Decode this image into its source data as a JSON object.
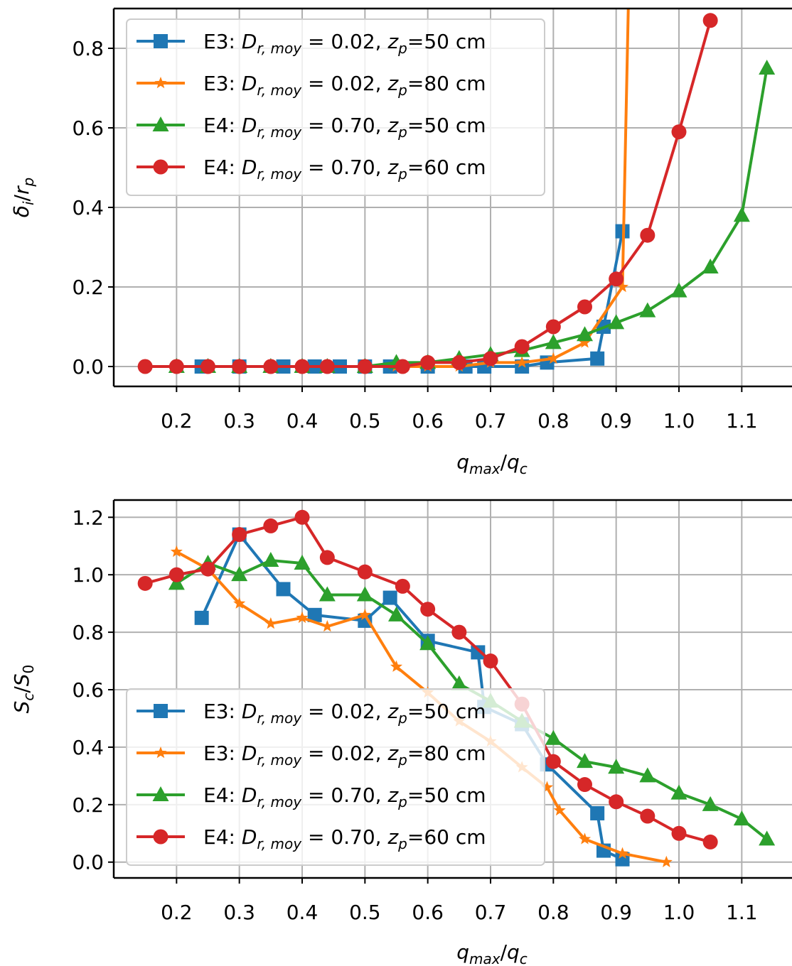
{
  "chart_data": [
    {
      "type": "line",
      "title": "",
      "xlabel": "q_max/q_c",
      "ylabel": "δ_i/r_p",
      "xlim": [
        0.1,
        1.18
      ],
      "ylim": [
        -0.05,
        0.9
      ],
      "xticks": [
        0.2,
        0.3,
        0.4,
        0.5,
        0.6,
        0.7,
        0.8,
        0.9,
        1.0,
        1.1
      ],
      "yticks": [
        0.0,
        0.2,
        0.4,
        0.6,
        0.8
      ],
      "xtick_labels": [
        "0.2",
        "0.3",
        "0.4",
        "0.5",
        "0.6",
        "0.7",
        "0.8",
        "0.9",
        "1.0",
        "1.1"
      ],
      "ytick_labels": [
        "0.0",
        "0.2",
        "0.4",
        "0.6",
        "0.8"
      ],
      "grid": true,
      "legend_position": "top-left",
      "series": [
        {
          "name": "E3: Dr,moy = 0.02, zp=50 cm",
          "color": "#1f77b4",
          "marker": "square",
          "x": [
            0.24,
            0.3,
            0.37,
            0.42,
            0.46,
            0.5,
            0.54,
            0.6,
            0.66,
            0.69,
            0.75,
            0.79,
            0.87,
            0.88,
            0.91
          ],
          "y": [
            0.0,
            0.0,
            0.0,
            0.0,
            0.0,
            0.0,
            0.0,
            0.0,
            0.0,
            0.0,
            0.0,
            0.01,
            0.02,
            0.1,
            0.34
          ]
        },
        {
          "name": "E3: Dr,moy = 0.02, zp=80 cm",
          "color": "#ff7f0e",
          "marker": "star",
          "x": [
            0.2,
            0.25,
            0.3,
            0.35,
            0.4,
            0.44,
            0.5,
            0.55,
            0.6,
            0.65,
            0.7,
            0.75,
            0.8,
            0.85,
            0.91,
            0.92
          ],
          "y": [
            0.0,
            0.0,
            0.0,
            0.0,
            0.0,
            0.0,
            0.0,
            0.0,
            0.0,
            0.0,
            0.01,
            0.01,
            0.02,
            0.06,
            0.2,
            0.95
          ]
        },
        {
          "name": "E4: Dr,moy = 0.70, zp=50 cm",
          "color": "#2ca02c",
          "marker": "triangle",
          "x": [
            0.2,
            0.25,
            0.3,
            0.35,
            0.4,
            0.44,
            0.5,
            0.55,
            0.6,
            0.65,
            0.7,
            0.75,
            0.8,
            0.85,
            0.9,
            0.95,
            1.0,
            1.05,
            1.1,
            1.14
          ],
          "y": [
            0.0,
            0.0,
            0.0,
            0.0,
            0.0,
            0.0,
            0.0,
            0.01,
            0.01,
            0.02,
            0.03,
            0.04,
            0.06,
            0.08,
            0.11,
            0.14,
            0.19,
            0.25,
            0.38,
            0.75
          ]
        },
        {
          "name": "E4: Dr,moy = 0.70, zp=60 cm",
          "color": "#d62728",
          "marker": "circle",
          "x": [
            0.15,
            0.2,
            0.25,
            0.3,
            0.35,
            0.4,
            0.44,
            0.5,
            0.56,
            0.6,
            0.65,
            0.7,
            0.75,
            0.8,
            0.85,
            0.9,
            0.95,
            1.0,
            1.05
          ],
          "y": [
            0.0,
            0.0,
            0.0,
            0.0,
            0.0,
            0.0,
            0.0,
            0.0,
            0.0,
            0.01,
            0.01,
            0.02,
            0.05,
            0.1,
            0.15,
            0.22,
            0.33,
            0.59,
            0.87
          ]
        }
      ]
    },
    {
      "type": "line",
      "title": "",
      "xlabel": "q_max/q_c",
      "ylabel": "S_c/S_0",
      "xlim": [
        0.1,
        1.18
      ],
      "ylim": [
        -0.055,
        1.26
      ],
      "xticks": [
        0.2,
        0.3,
        0.4,
        0.5,
        0.6,
        0.7,
        0.8,
        0.9,
        1.0,
        1.1
      ],
      "yticks": [
        0.0,
        0.2,
        0.4,
        0.6,
        0.8,
        1.0,
        1.2
      ],
      "xtick_labels": [
        "0.2",
        "0.3",
        "0.4",
        "0.5",
        "0.6",
        "0.7",
        "0.8",
        "0.9",
        "1.0",
        "1.1"
      ],
      "ytick_labels": [
        "0.0",
        "0.2",
        "0.4",
        "0.6",
        "0.8",
        "1.0",
        "1.2"
      ],
      "grid": true,
      "legend_position": "bottom-left",
      "series": [
        {
          "name": "E3: Dr,moy = 0.02, zp=50 cm",
          "color": "#1f77b4",
          "marker": "square",
          "x": [
            0.24,
            0.3,
            0.37,
            0.42,
            0.5,
            0.54,
            0.6,
            0.68,
            0.69,
            0.75,
            0.79,
            0.87,
            0.88,
            0.91
          ],
          "y": [
            0.85,
            1.14,
            0.95,
            0.86,
            0.84,
            0.92,
            0.77,
            0.73,
            0.54,
            0.48,
            0.34,
            0.17,
            0.04,
            0.01
          ]
        },
        {
          "name": "E3: Dr,moy = 0.02, zp=80 cm",
          "color": "#ff7f0e",
          "marker": "star",
          "x": [
            0.2,
            0.25,
            0.3,
            0.35,
            0.4,
            0.44,
            0.5,
            0.55,
            0.6,
            0.65,
            0.7,
            0.75,
            0.79,
            0.81,
            0.85,
            0.91,
            0.98
          ],
          "y": [
            1.08,
            1.02,
            0.9,
            0.83,
            0.85,
            0.82,
            0.86,
            0.68,
            0.59,
            0.49,
            0.42,
            0.33,
            0.26,
            0.18,
            0.08,
            0.03,
            0.0
          ]
        },
        {
          "name": "E4: Dr,moy = 0.70, zp=50 cm",
          "color": "#2ca02c",
          "marker": "triangle",
          "x": [
            0.2,
            0.25,
            0.3,
            0.35,
            0.4,
            0.44,
            0.5,
            0.55,
            0.6,
            0.65,
            0.7,
            0.75,
            0.8,
            0.85,
            0.9,
            0.95,
            1.0,
            1.05,
            1.1,
            1.14
          ],
          "y": [
            0.97,
            1.04,
            1.0,
            1.05,
            1.04,
            0.93,
            0.93,
            0.86,
            0.76,
            0.62,
            0.56,
            0.49,
            0.43,
            0.35,
            0.33,
            0.3,
            0.24,
            0.2,
            0.15,
            0.08
          ]
        },
        {
          "name": "E4: Dr,moy = 0.70, zp=60 cm",
          "color": "#d62728",
          "marker": "circle",
          "x": [
            0.15,
            0.2,
            0.25,
            0.3,
            0.35,
            0.4,
            0.44,
            0.5,
            0.56,
            0.6,
            0.65,
            0.7,
            0.75,
            0.8,
            0.85,
            0.9,
            0.95,
            1.0,
            1.05
          ],
          "y": [
            0.97,
            1.0,
            1.02,
            1.14,
            1.17,
            1.2,
            1.06,
            1.01,
            0.96,
            0.88,
            0.8,
            0.7,
            0.55,
            0.35,
            0.27,
            0.21,
            0.16,
            0.1,
            0.07
          ]
        }
      ]
    }
  ]
}
